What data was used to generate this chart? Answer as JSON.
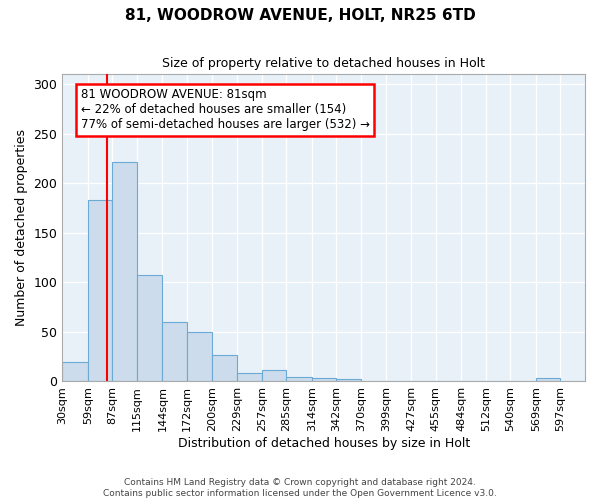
{
  "title1": "81, WOODROW AVENUE, HOLT, NR25 6TD",
  "title2": "Size of property relative to detached houses in Holt",
  "xlabel": "Distribution of detached houses by size in Holt",
  "ylabel": "Number of detached properties",
  "bar_left_edges": [
    30,
    59,
    87,
    115,
    144,
    172,
    200,
    229,
    257,
    285,
    314,
    342,
    370,
    399,
    427,
    455,
    484,
    512,
    540,
    569,
    597
  ],
  "bar_heights": [
    20,
    183,
    222,
    107,
    60,
    50,
    27,
    9,
    12,
    4,
    3,
    2,
    0,
    0,
    0,
    0,
    0,
    0,
    0,
    3,
    0
  ],
  "bar_color": "#ccdcec",
  "bar_edgecolor": "#6aaad4",
  "red_line_x": 81,
  "annotation_line1": "81 WOODROW AVENUE: 81sqm",
  "annotation_line2": "← 22% of detached houses are smaller (154)",
  "annotation_line3": "77% of semi-detached houses are larger (532) →",
  "annotation_box_color": "white",
  "annotation_box_edgecolor": "red",
  "ylim": [
    0,
    310
  ],
  "yticks": [
    0,
    50,
    100,
    150,
    200,
    250,
    300
  ],
  "footer1": "Contains HM Land Registry data © Crown copyright and database right 2024.",
  "footer2": "Contains public sector information licensed under the Open Government Licence v3.0.",
  "bg_color": "#ffffff",
  "plot_bg_color": "#e8f0f8"
}
